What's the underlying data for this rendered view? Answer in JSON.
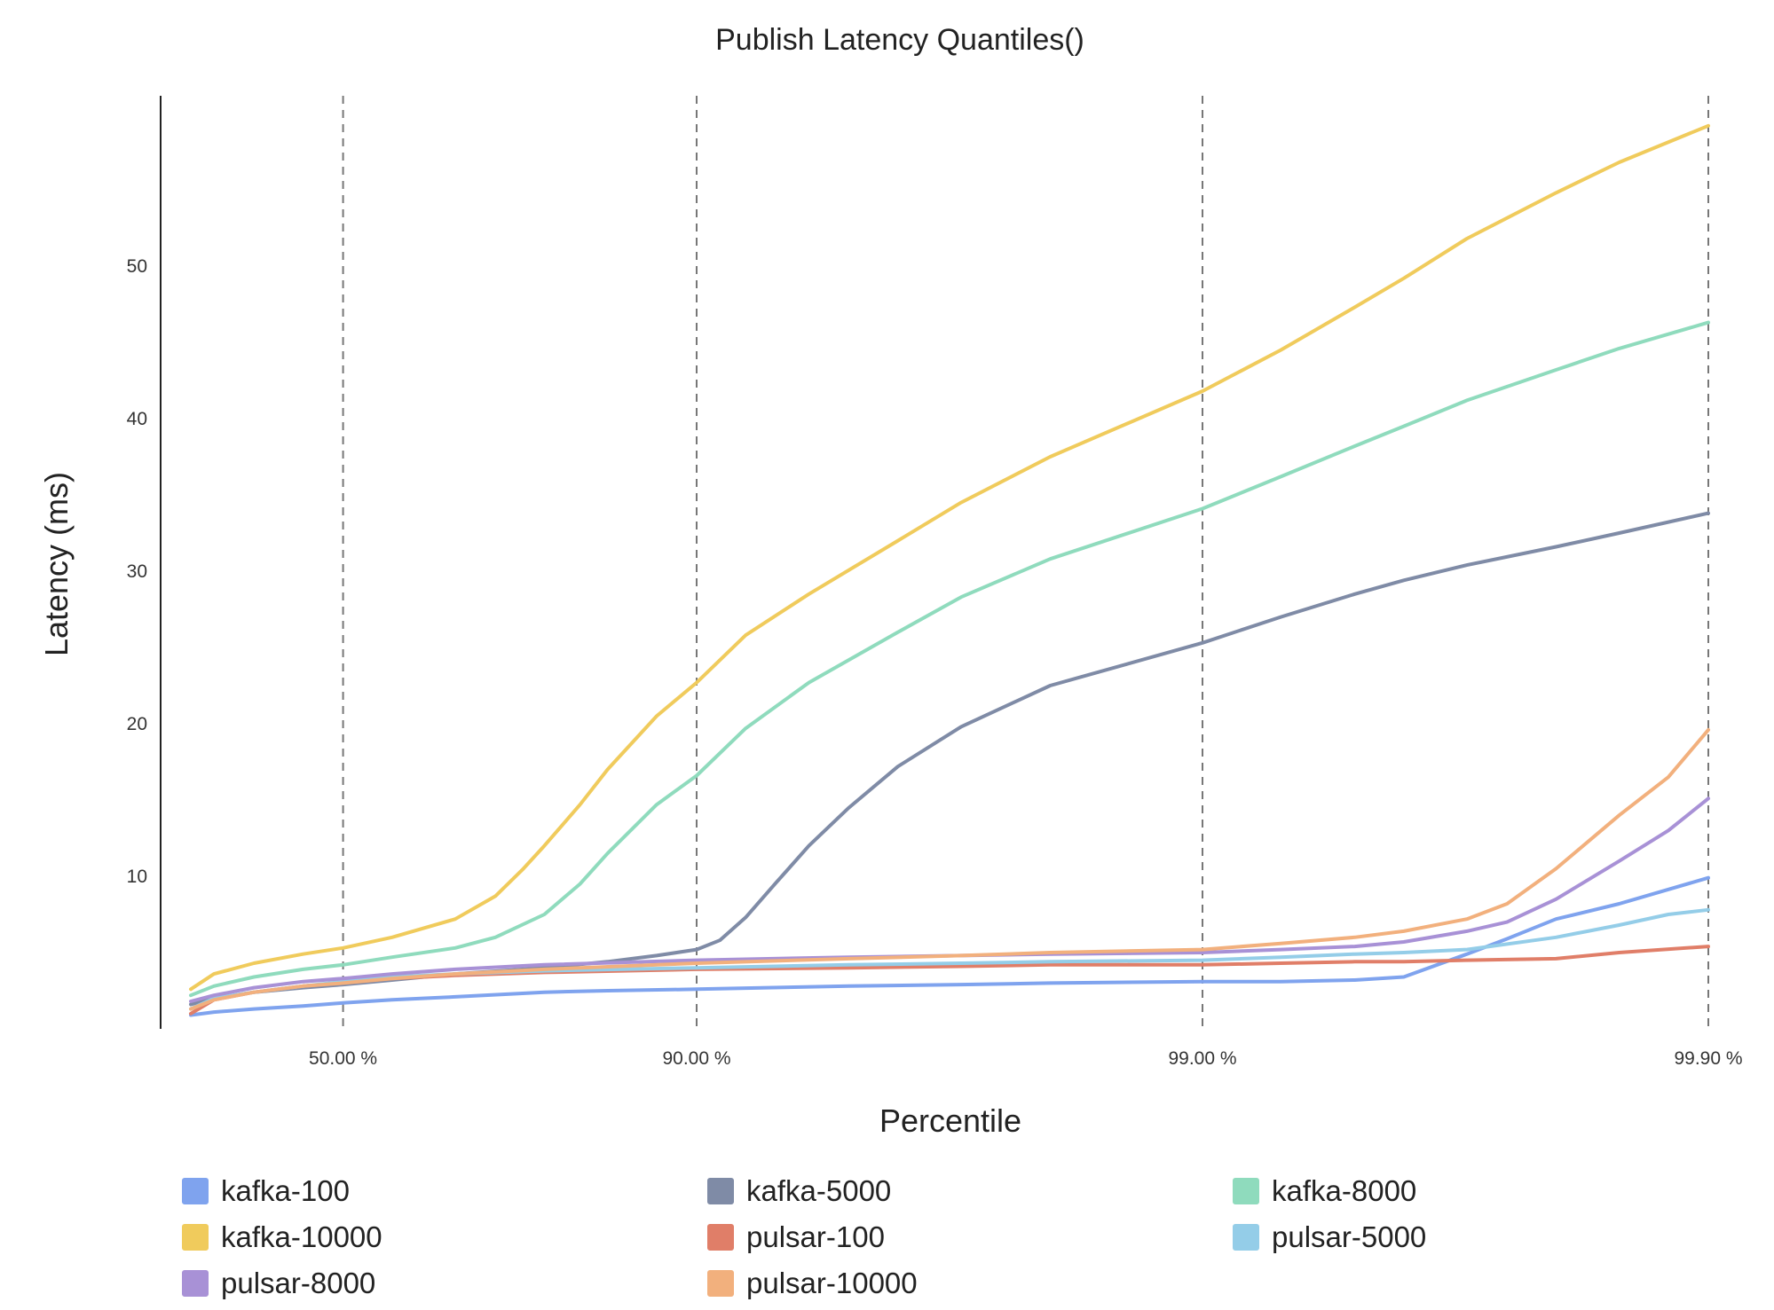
{
  "chart_data": {
    "type": "line",
    "title": "Publish Latency Quantiles()",
    "xlabel": "Percentile",
    "ylabel": "Latency (ms)",
    "x_scale": "percentile (log of 1/(1-p))",
    "x_ticks": [
      {
        "p": 50.0,
        "label": "50.00 %"
      },
      {
        "p": 90.0,
        "label": "90.00 %"
      },
      {
        "p": 99.0,
        "label": "99.00 %"
      },
      {
        "p": 99.9,
        "label": "99.90 %"
      }
    ],
    "y_ticks": [
      10,
      20,
      30,
      40,
      50
    ],
    "ylim": [
      0,
      60
    ],
    "grid": "vertical dashed at x ticks",
    "legend_position": "bottom",
    "series": [
      {
        "name": "kafka-100",
        "color": "#7fa3ee",
        "points": [
          [
            0,
            0.9
          ],
          [
            10,
            1.1
          ],
          [
            25,
            1.3
          ],
          [
            40,
            1.5
          ],
          [
            50,
            1.7
          ],
          [
            60,
            1.9
          ],
          [
            70,
            2.1
          ],
          [
            80,
            2.4
          ],
          [
            85,
            2.5
          ],
          [
            90,
            2.6
          ],
          [
            95,
            2.8
          ],
          [
            97,
            2.9
          ],
          [
            98,
            3.0
          ],
          [
            99,
            3.1
          ],
          [
            99.3,
            3.1
          ],
          [
            99.5,
            3.2
          ],
          [
            99.6,
            3.4
          ],
          [
            99.7,
            4.9
          ],
          [
            99.75,
            5.9
          ],
          [
            99.8,
            7.2
          ],
          [
            99.85,
            8.2
          ],
          [
            99.9,
            9.9
          ]
        ]
      },
      {
        "name": "kafka-5000",
        "color": "#7f8ba6",
        "points": [
          [
            0,
            1.6
          ],
          [
            10,
            2.0
          ],
          [
            25,
            2.4
          ],
          [
            40,
            2.7
          ],
          [
            50,
            2.9
          ],
          [
            60,
            3.2
          ],
          [
            70,
            3.6
          ],
          [
            80,
            4.0
          ],
          [
            85,
            4.4
          ],
          [
            88,
            4.8
          ],
          [
            90,
            5.2
          ],
          [
            91,
            5.8
          ],
          [
            92,
            7.3
          ],
          [
            93,
            9.5
          ],
          [
            94,
            12.0
          ],
          [
            95,
            14.5
          ],
          [
            96,
            17.2
          ],
          [
            97,
            19.8
          ],
          [
            98,
            22.5
          ],
          [
            99,
            25.3
          ],
          [
            99.3,
            27.0
          ],
          [
            99.5,
            28.5
          ],
          [
            99.6,
            29.4
          ],
          [
            99.7,
            30.4
          ],
          [
            99.8,
            31.6
          ],
          [
            99.85,
            32.5
          ],
          [
            99.9,
            33.8
          ]
        ]
      },
      {
        "name": "kafka-8000",
        "color": "#8fdbbd",
        "points": [
          [
            0,
            2.2
          ],
          [
            10,
            2.8
          ],
          [
            25,
            3.4
          ],
          [
            40,
            3.9
          ],
          [
            50,
            4.2
          ],
          [
            60,
            4.7
          ],
          [
            70,
            5.3
          ],
          [
            75,
            6.0
          ],
          [
            80,
            7.5
          ],
          [
            83,
            9.5
          ],
          [
            85,
            11.5
          ],
          [
            88,
            14.7
          ],
          [
            90,
            16.6
          ],
          [
            92,
            19.7
          ],
          [
            94,
            22.7
          ],
          [
            96,
            26.0
          ],
          [
            97,
            28.3
          ],
          [
            98,
            30.8
          ],
          [
            99,
            34.1
          ],
          [
            99.3,
            36.2
          ],
          [
            99.5,
            38.2
          ],
          [
            99.6,
            39.5
          ],
          [
            99.7,
            41.2
          ],
          [
            99.8,
            43.2
          ],
          [
            99.85,
            44.6
          ],
          [
            99.9,
            46.3
          ]
        ]
      },
      {
        "name": "kafka-10000",
        "color": "#f0cb5c",
        "points": [
          [
            0,
            2.6
          ],
          [
            10,
            3.6
          ],
          [
            25,
            4.3
          ],
          [
            40,
            4.9
          ],
          [
            50,
            5.3
          ],
          [
            60,
            6.0
          ],
          [
            70,
            7.2
          ],
          [
            75,
            8.7
          ],
          [
            78,
            10.5
          ],
          [
            80,
            12.0
          ],
          [
            83,
            14.7
          ],
          [
            85,
            17.0
          ],
          [
            88,
            20.5
          ],
          [
            90,
            22.7
          ],
          [
            92,
            25.8
          ],
          [
            94,
            28.5
          ],
          [
            96,
            32.0
          ],
          [
            97,
            34.5
          ],
          [
            98,
            37.5
          ],
          [
            99,
            41.8
          ],
          [
            99.3,
            44.5
          ],
          [
            99.5,
            47.3
          ],
          [
            99.6,
            49.2
          ],
          [
            99.7,
            51.8
          ],
          [
            99.8,
            54.8
          ],
          [
            99.85,
            56.8
          ],
          [
            99.9,
            59.2
          ]
        ]
      },
      {
        "name": "pulsar-100",
        "color": "#e07e68",
        "points": [
          [
            0,
            1.0
          ],
          [
            10,
            1.9
          ],
          [
            25,
            2.4
          ],
          [
            40,
            2.8
          ],
          [
            50,
            3.0
          ],
          [
            60,
            3.3
          ],
          [
            70,
            3.5
          ],
          [
            80,
            3.7
          ],
          [
            90,
            3.9
          ],
          [
            95,
            4.0
          ],
          [
            97,
            4.1
          ],
          [
            98,
            4.2
          ],
          [
            99,
            4.2
          ],
          [
            99.3,
            4.3
          ],
          [
            99.5,
            4.4
          ],
          [
            99.6,
            4.4
          ],
          [
            99.7,
            4.5
          ],
          [
            99.8,
            4.6
          ],
          [
            99.85,
            5.0
          ],
          [
            99.9,
            5.4
          ]
        ]
      },
      {
        "name": "pulsar-5000",
        "color": "#94cde8",
        "points": [
          [
            0,
            1.3
          ],
          [
            10,
            2.0
          ],
          [
            25,
            2.4
          ],
          [
            40,
            2.8
          ],
          [
            50,
            3.1
          ],
          [
            60,
            3.4
          ],
          [
            70,
            3.6
          ],
          [
            80,
            3.8
          ],
          [
            90,
            4.0
          ],
          [
            95,
            4.2
          ],
          [
            97,
            4.3
          ],
          [
            98,
            4.4
          ],
          [
            99,
            4.5
          ],
          [
            99.3,
            4.7
          ],
          [
            99.5,
            4.9
          ],
          [
            99.6,
            5.0
          ],
          [
            99.7,
            5.2
          ],
          [
            99.8,
            6.0
          ],
          [
            99.85,
            6.8
          ],
          [
            99.88,
            7.5
          ],
          [
            99.9,
            7.8
          ]
        ]
      },
      {
        "name": "pulsar-8000",
        "color": "#a891d6",
        "points": [
          [
            0,
            1.8
          ],
          [
            10,
            2.2
          ],
          [
            25,
            2.7
          ],
          [
            40,
            3.1
          ],
          [
            50,
            3.3
          ],
          [
            60,
            3.6
          ],
          [
            70,
            3.9
          ],
          [
            80,
            4.2
          ],
          [
            90,
            4.5
          ],
          [
            95,
            4.7
          ],
          [
            97,
            4.8
          ],
          [
            98,
            4.9
          ],
          [
            99,
            5.0
          ],
          [
            99.3,
            5.2
          ],
          [
            99.5,
            5.4
          ],
          [
            99.6,
            5.7
          ],
          [
            99.7,
            6.4
          ],
          [
            99.75,
            7.0
          ],
          [
            99.8,
            8.5
          ],
          [
            99.85,
            11.0
          ],
          [
            99.88,
            13.0
          ],
          [
            99.9,
            15.1
          ]
        ]
      },
      {
        "name": "pulsar-10000",
        "color": "#f2b07d",
        "points": [
          [
            0,
            1.3
          ],
          [
            10,
            1.9
          ],
          [
            25,
            2.4
          ],
          [
            40,
            2.8
          ],
          [
            50,
            3.0
          ],
          [
            60,
            3.3
          ],
          [
            70,
            3.6
          ],
          [
            80,
            3.9
          ],
          [
            90,
            4.3
          ],
          [
            95,
            4.6
          ],
          [
            97,
            4.8
          ],
          [
            98,
            5.0
          ],
          [
            99,
            5.2
          ],
          [
            99.3,
            5.6
          ],
          [
            99.5,
            6.0
          ],
          [
            99.6,
            6.4
          ],
          [
            99.7,
            7.2
          ],
          [
            99.75,
            8.2
          ],
          [
            99.8,
            10.5
          ],
          [
            99.85,
            14.0
          ],
          [
            99.88,
            16.5
          ],
          [
            99.9,
            19.6
          ]
        ]
      }
    ]
  }
}
